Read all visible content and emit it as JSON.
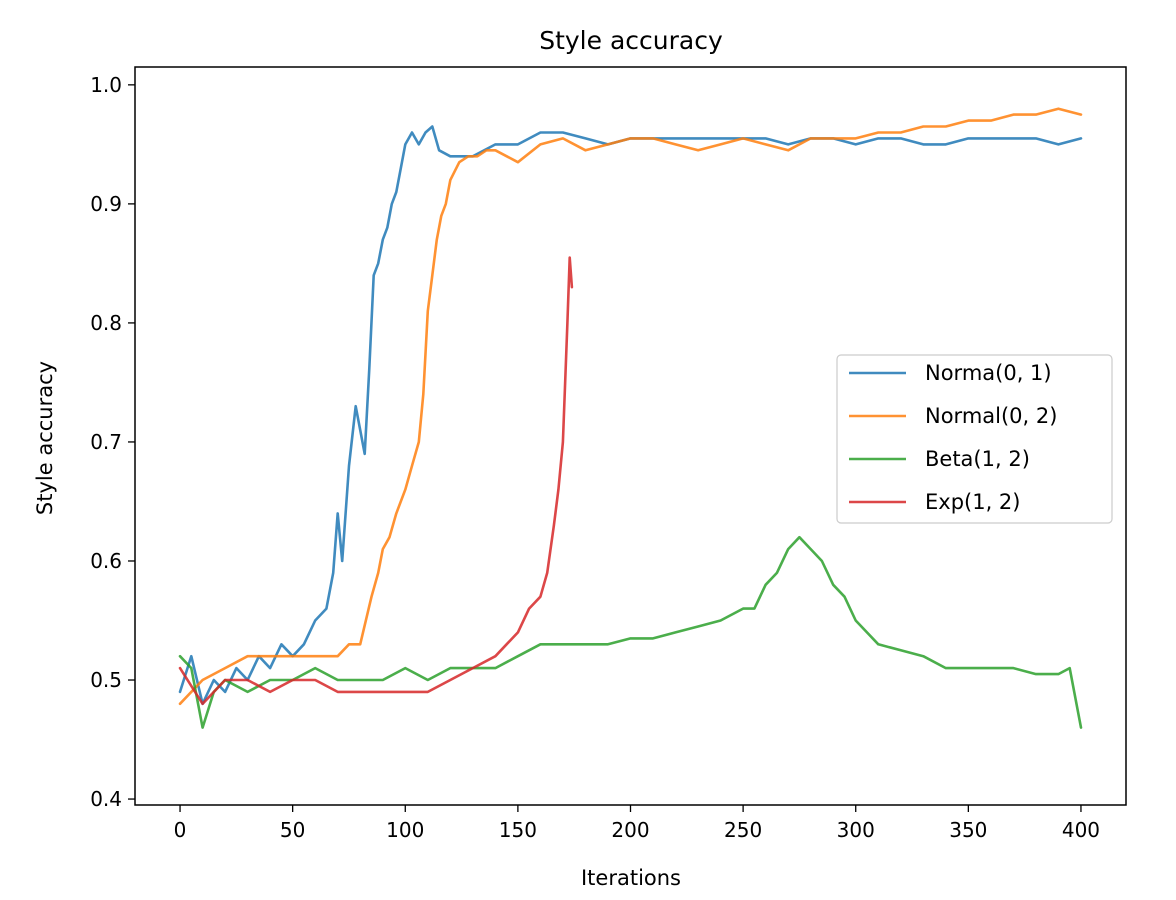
{
  "chart_data": {
    "type": "line",
    "title": "Style accuracy",
    "xlabel": "Iterations",
    "ylabel": "Style accuracy",
    "xlim": [
      -20,
      420
    ],
    "ylim": [
      0.395,
      1.015
    ],
    "xticks": [
      0,
      50,
      100,
      150,
      200,
      250,
      300,
      350,
      400
    ],
    "yticks": [
      0.4,
      0.5,
      0.6,
      0.7,
      0.8,
      0.9,
      1.0
    ],
    "xtick_labels": [
      "0",
      "50",
      "100",
      "150",
      "200",
      "250",
      "300",
      "350",
      "400"
    ],
    "ytick_labels": [
      "0.4",
      "0.5",
      "0.6",
      "0.7",
      "0.8",
      "0.9",
      "1.0"
    ],
    "grid": false,
    "legend_position": "center-right",
    "series": [
      {
        "name": "Norma(0, 1)",
        "color": "#1f77b4",
        "points": [
          [
            0,
            0.49
          ],
          [
            5,
            0.52
          ],
          [
            10,
            0.48
          ],
          [
            15,
            0.5
          ],
          [
            20,
            0.49
          ],
          [
            25,
            0.51
          ],
          [
            30,
            0.5
          ],
          [
            35,
            0.52
          ],
          [
            40,
            0.51
          ],
          [
            45,
            0.53
          ],
          [
            50,
            0.52
          ],
          [
            55,
            0.53
          ],
          [
            60,
            0.55
          ],
          [
            65,
            0.56
          ],
          [
            68,
            0.59
          ],
          [
            70,
            0.64
          ],
          [
            72,
            0.6
          ],
          [
            75,
            0.68
          ],
          [
            78,
            0.73
          ],
          [
            80,
            0.71
          ],
          [
            82,
            0.69
          ],
          [
            84,
            0.76
          ],
          [
            86,
            0.84
          ],
          [
            88,
            0.85
          ],
          [
            90,
            0.87
          ],
          [
            92,
            0.88
          ],
          [
            94,
            0.9
          ],
          [
            96,
            0.91
          ],
          [
            98,
            0.93
          ],
          [
            100,
            0.95
          ],
          [
            103,
            0.96
          ],
          [
            106,
            0.95
          ],
          [
            109,
            0.96
          ],
          [
            112,
            0.965
          ],
          [
            115,
            0.945
          ],
          [
            120,
            0.94
          ],
          [
            130,
            0.94
          ],
          [
            140,
            0.95
          ],
          [
            150,
            0.95
          ],
          [
            160,
            0.96
          ],
          [
            170,
            0.96
          ],
          [
            180,
            0.955
          ],
          [
            190,
            0.95
          ],
          [
            200,
            0.955
          ],
          [
            210,
            0.955
          ],
          [
            220,
            0.955
          ],
          [
            230,
            0.955
          ],
          [
            240,
            0.955
          ],
          [
            250,
            0.955
          ],
          [
            260,
            0.955
          ],
          [
            270,
            0.95
          ],
          [
            280,
            0.955
          ],
          [
            290,
            0.955
          ],
          [
            300,
            0.95
          ],
          [
            310,
            0.955
          ],
          [
            320,
            0.955
          ],
          [
            330,
            0.95
          ],
          [
            340,
            0.95
          ],
          [
            350,
            0.955
          ],
          [
            360,
            0.955
          ],
          [
            370,
            0.955
          ],
          [
            380,
            0.955
          ],
          [
            390,
            0.95
          ],
          [
            400,
            0.955
          ]
        ]
      },
      {
        "name": "Normal(0, 2)",
        "color": "#ff7f0e",
        "points": [
          [
            0,
            0.48
          ],
          [
            10,
            0.5
          ],
          [
            20,
            0.51
          ],
          [
            30,
            0.52
          ],
          [
            40,
            0.52
          ],
          [
            50,
            0.52
          ],
          [
            60,
            0.52
          ],
          [
            70,
            0.52
          ],
          [
            75,
            0.53
          ],
          [
            80,
            0.53
          ],
          [
            85,
            0.57
          ],
          [
            88,
            0.59
          ],
          [
            90,
            0.61
          ],
          [
            93,
            0.62
          ],
          [
            96,
            0.64
          ],
          [
            100,
            0.66
          ],
          [
            103,
            0.68
          ],
          [
            106,
            0.7
          ],
          [
            108,
            0.74
          ],
          [
            110,
            0.81
          ],
          [
            112,
            0.84
          ],
          [
            114,
            0.87
          ],
          [
            116,
            0.89
          ],
          [
            118,
            0.9
          ],
          [
            120,
            0.92
          ],
          [
            124,
            0.935
          ],
          [
            128,
            0.94
          ],
          [
            132,
            0.94
          ],
          [
            136,
            0.945
          ],
          [
            140,
            0.945
          ],
          [
            150,
            0.935
          ],
          [
            160,
            0.95
          ],
          [
            170,
            0.955
          ],
          [
            180,
            0.945
          ],
          [
            190,
            0.95
          ],
          [
            200,
            0.955
          ],
          [
            210,
            0.955
          ],
          [
            220,
            0.95
          ],
          [
            230,
            0.945
          ],
          [
            240,
            0.95
          ],
          [
            250,
            0.955
          ],
          [
            260,
            0.95
          ],
          [
            270,
            0.945
          ],
          [
            280,
            0.955
          ],
          [
            290,
            0.955
          ],
          [
            300,
            0.955
          ],
          [
            310,
            0.96
          ],
          [
            320,
            0.96
          ],
          [
            330,
            0.965
          ],
          [
            340,
            0.965
          ],
          [
            350,
            0.97
          ],
          [
            360,
            0.97
          ],
          [
            370,
            0.975
          ],
          [
            380,
            0.975
          ],
          [
            390,
            0.98
          ],
          [
            400,
            0.975
          ]
        ]
      },
      {
        "name": "Beta(1, 2)",
        "color": "#2ca02c",
        "points": [
          [
            0,
            0.52
          ],
          [
            5,
            0.51
          ],
          [
            10,
            0.46
          ],
          [
            15,
            0.49
          ],
          [
            20,
            0.5
          ],
          [
            30,
            0.49
          ],
          [
            40,
            0.5
          ],
          [
            50,
            0.5
          ],
          [
            60,
            0.51
          ],
          [
            70,
            0.5
          ],
          [
            80,
            0.5
          ],
          [
            90,
            0.5
          ],
          [
            100,
            0.51
          ],
          [
            110,
            0.5
          ],
          [
            120,
            0.51
          ],
          [
            130,
            0.51
          ],
          [
            140,
            0.51
          ],
          [
            150,
            0.52
          ],
          [
            160,
            0.53
          ],
          [
            170,
            0.53
          ],
          [
            180,
            0.53
          ],
          [
            190,
            0.53
          ],
          [
            200,
            0.535
          ],
          [
            210,
            0.535
          ],
          [
            220,
            0.54
          ],
          [
            230,
            0.545
          ],
          [
            240,
            0.55
          ],
          [
            250,
            0.56
          ],
          [
            255,
            0.56
          ],
          [
            260,
            0.58
          ],
          [
            265,
            0.59
          ],
          [
            270,
            0.61
          ],
          [
            275,
            0.62
          ],
          [
            280,
            0.61
          ],
          [
            285,
            0.6
          ],
          [
            290,
            0.58
          ],
          [
            295,
            0.57
          ],
          [
            300,
            0.55
          ],
          [
            310,
            0.53
          ],
          [
            320,
            0.525
          ],
          [
            330,
            0.52
          ],
          [
            340,
            0.51
          ],
          [
            350,
            0.51
          ],
          [
            360,
            0.51
          ],
          [
            370,
            0.51
          ],
          [
            380,
            0.505
          ],
          [
            390,
            0.505
          ],
          [
            395,
            0.51
          ],
          [
            400,
            0.46
          ]
        ]
      },
      {
        "name": "Exp(1, 2)",
        "color": "#d62728",
        "points": [
          [
            0,
            0.51
          ],
          [
            10,
            0.48
          ],
          [
            20,
            0.5
          ],
          [
            30,
            0.5
          ],
          [
            40,
            0.49
          ],
          [
            50,
            0.5
          ],
          [
            60,
            0.5
          ],
          [
            70,
            0.49
          ],
          [
            80,
            0.49
          ],
          [
            90,
            0.49
          ],
          [
            100,
            0.49
          ],
          [
            110,
            0.49
          ],
          [
            120,
            0.5
          ],
          [
            130,
            0.51
          ],
          [
            140,
            0.52
          ],
          [
            145,
            0.53
          ],
          [
            150,
            0.54
          ],
          [
            155,
            0.56
          ],
          [
            160,
            0.57
          ],
          [
            163,
            0.59
          ],
          [
            166,
            0.63
          ],
          [
            168,
            0.66
          ],
          [
            170,
            0.7
          ],
          [
            172,
            0.8
          ],
          [
            173,
            0.855
          ],
          [
            174,
            0.83
          ]
        ]
      }
    ]
  }
}
